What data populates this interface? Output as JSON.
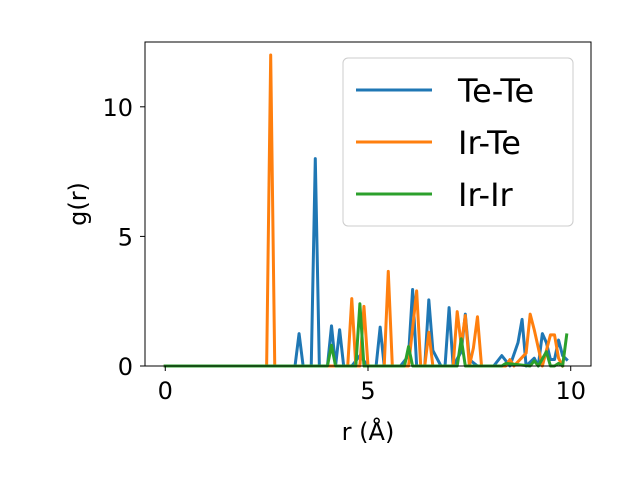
{
  "chart_data": {
    "type": "line",
    "xlabel": "r (Å)",
    "ylabel": "g(r)",
    "xlim": [
      -0.5,
      10.5
    ],
    "ylim": [
      0,
      12.5
    ],
    "xticks": [
      0,
      5,
      10
    ],
    "yticks": [
      0,
      5,
      10
    ],
    "legend": "top-right",
    "grid": false,
    "series": [
      {
        "name": "Te-Te",
        "color": "#1f77b4",
        "x": [
          0,
          3.2,
          3.3,
          3.4,
          3.6,
          3.7,
          3.8,
          4.0,
          4.1,
          4.2,
          4.3,
          4.4,
          4.6,
          4.8,
          5.0,
          5.2,
          5.3,
          5.4,
          5.6,
          5.8,
          6.0,
          6.1,
          6.2,
          6.4,
          6.5,
          6.6,
          6.8,
          6.9,
          7.0,
          7.1,
          7.3,
          7.4,
          7.5,
          7.7,
          7.9,
          8.1,
          8.3,
          8.5,
          8.7,
          8.8,
          8.9,
          9.1,
          9.2,
          9.3,
          9.4,
          9.5,
          9.6,
          9.7,
          9.8,
          9.9
        ],
        "values": [
          0,
          0,
          1.25,
          0,
          0,
          8.0,
          0,
          0,
          1.55,
          0,
          1.4,
          0,
          0,
          0.4,
          0,
          0,
          1.5,
          0,
          0,
          0,
          0.4,
          2.95,
          0,
          0,
          2.55,
          0.6,
          0,
          0,
          2.25,
          0,
          0.55,
          2.0,
          0.25,
          0,
          0,
          0,
          0.4,
          0,
          0.9,
          1.8,
          0,
          0.3,
          0,
          1.25,
          0.9,
          0.25,
          0.25,
          1.0,
          0.4,
          0.25
        ]
      },
      {
        "name": "Ir-Te",
        "color": "#ff7f0e",
        "x": [
          0,
          2.5,
          2.6,
          2.7,
          4.5,
          4.6,
          4.7,
          4.8,
          4.9,
          5.0,
          5.4,
          5.5,
          5.6,
          6.0,
          6.2,
          6.3,
          6.4,
          6.5,
          6.6,
          7.1,
          7.2,
          7.3,
          7.4,
          7.5,
          7.6,
          7.7,
          7.8,
          8.0,
          8.2,
          8.4,
          8.5,
          8.6,
          8.9,
          9.0,
          9.1,
          9.3,
          9.4,
          9.5,
          9.6,
          9.7,
          9.8
        ],
        "values": [
          0,
          0,
          12.0,
          0,
          0,
          2.6,
          0,
          0,
          2.3,
          0,
          0,
          3.65,
          0,
          0,
          2.9,
          0,
          0,
          1.3,
          0,
          0,
          2.1,
          0.8,
          1.95,
          0,
          0.7,
          1.9,
          0,
          0,
          0,
          0,
          0.25,
          0,
          0.5,
          2.0,
          1.4,
          0,
          0.6,
          1.2,
          1.2,
          0.3,
          0
        ]
      },
      {
        "name": "Ir-Ir",
        "color": "#2ca02c",
        "x": [
          0,
          4.0,
          4.1,
          4.2,
          4.6,
          4.7,
          4.8,
          4.9,
          5.8,
          5.9,
          6.0,
          6.1,
          7.2,
          7.3,
          7.4,
          7.5,
          8.1,
          8.2,
          8.3,
          8.4,
          9.0,
          9.1,
          9.2,
          9.4,
          9.5,
          9.6,
          9.7,
          9.8,
          9.9
        ],
        "values": [
          0,
          0,
          0.8,
          0,
          0,
          0,
          2.4,
          0,
          0,
          0,
          0.75,
          0,
          0,
          1.05,
          0,
          0,
          0,
          0,
          0,
          0.1,
          0,
          0.2,
          0,
          0.55,
          0,
          0,
          0.1,
          0,
          1.2
        ]
      }
    ]
  }
}
